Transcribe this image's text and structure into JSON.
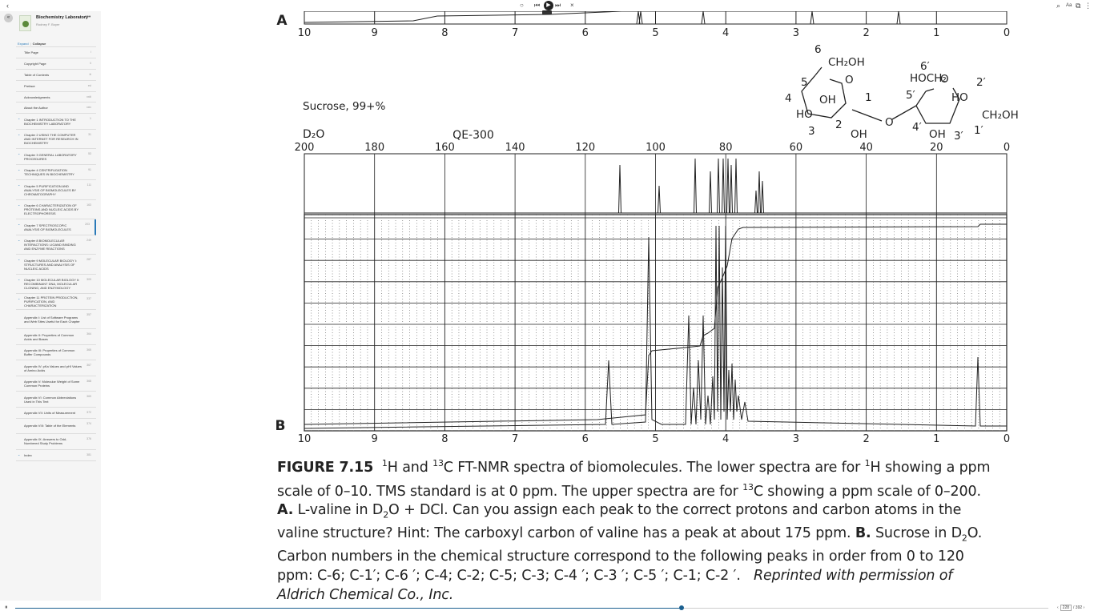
{
  "topbar": {
    "back_icon": "‹",
    "media": {
      "stop": "○",
      "prev": "⏮",
      "play": "▶",
      "next": "⏭",
      "close": "×"
    },
    "right_icons": [
      "⌕",
      "Aa",
      "⧉",
      "⋮"
    ]
  },
  "sidebar": {
    "book_title": "Biochemistry Laboratory",
    "book_author": "Rodney F. Boyer",
    "expand_label": "Expand",
    "collapse_label": "Collapse",
    "toc": [
      {
        "label": "Title Page",
        "page": "i",
        "chevron": false
      },
      {
        "label": "Copyright Page",
        "page": "ii",
        "chevron": false
      },
      {
        "label": "Table of Contents",
        "page": "iii",
        "chevron": false
      },
      {
        "label": "Preface",
        "page": "xvi",
        "chevron": false
      },
      {
        "label": "Acknowledgments",
        "page": "xxiii",
        "chevron": false
      },
      {
        "label": "About the Author",
        "page": "xxiv",
        "chevron": false
      },
      {
        "label": "Chapter 1 INTRODUCTION TO THE BIOCHEMISTRY LABORATORY",
        "page": "1",
        "chevron": true
      },
      {
        "label": "Chapter 2 USING THE COMPUTER AND INTERNET FOR RESEARCH IN BIOCHEMISTRY",
        "page": "31",
        "chevron": true
      },
      {
        "label": "Chapter 3 GENERAL LABORATORY PROCEDURES",
        "page": "53",
        "chevron": true
      },
      {
        "label": "Chapter 4 CENTRIFUGATION TECHNIQUES IN BIOCHEMISTRY",
        "page": "91",
        "chevron": true
      },
      {
        "label": "Chapter 5 PURIFICATION AND ANALYSIS OF BIOMOLECULES BY CHROMATOGRAPHY",
        "page": "111",
        "chevron": true
      },
      {
        "label": "Chapter 6 CHARACTERIZATION OF PROTEINS AND NUCLEIC ACIDS BY ELECTROPHORESIS",
        "page": "163",
        "chevron": true
      },
      {
        "label": "Chapter 7 SPECTROSCOPIC ANALYSIS OF BIOMOLECULES",
        "page": "203",
        "chevron": true,
        "active": true
      },
      {
        "label": "Chapter 8 BIOMOLECULAR INTERACTIONS: LIGAND BINDING AND ENZYME REACTIONS",
        "page": "249",
        "chevron": true
      },
      {
        "label": "Chapter 9 MOLECULAR BIOLOGY I: STRUCTURES AND ANALYSIS OF NUCLEIC ACIDS",
        "page": "287",
        "chevron": true
      },
      {
        "label": "Chapter 10 MOLECULAR BIOLOGY II: RECOMBINANT DNA, MOLECULAR CLONING, AND ENZYMOLOGY",
        "page": "309",
        "chevron": true
      },
      {
        "label": "Chapter 11 PROTEIN PRODUCTION, PURIFICATION, AND CHARACTERIZATION",
        "page": "337",
        "chevron": true
      },
      {
        "label": "Appendix I: List of Software Programs and Web Sites Useful for Each Chapter",
        "page": "357",
        "chevron": false
      },
      {
        "label": "Appendix II: Properties of Common Acids and Bases",
        "page": "364",
        "chevron": false
      },
      {
        "label": "Appendix III: Properties of Common Buffer Compounds",
        "page": "365",
        "chevron": false
      },
      {
        "label": "Appendix IV: pKa Values and pHI Values of Amino Acids",
        "page": "367",
        "chevron": false
      },
      {
        "label": "Appendix V: Molecular Weight of Some Common Proteins",
        "page": "368",
        "chevron": false
      },
      {
        "label": "Appendix VI: Common Abbreviations Used in This Text",
        "page": "369",
        "chevron": false
      },
      {
        "label": "Appendix VII: Units of Measurement",
        "page": "372",
        "chevron": false
      },
      {
        "label": "Appendix VIII: Table of the Elements",
        "page": "374",
        "chevron": false
      },
      {
        "label": "Appendix IX: Answers to Odd-Numbered Study Problems",
        "page": "376",
        "chevron": false
      },
      {
        "label": "Index",
        "page": "381",
        "chevron": true
      }
    ]
  },
  "figure": {
    "panel_a": "A",
    "panel_b": "B",
    "h_ticks": [
      "10",
      "9",
      "8",
      "7",
      "6",
      "5",
      "4",
      "3",
      "2",
      "1",
      "0"
    ],
    "c_ticks": [
      "200",
      "180",
      "160",
      "140",
      "120",
      "100",
      "80",
      "60",
      "40",
      "20",
      "0"
    ],
    "sample": "Sucrose, 99+%",
    "solvent": "D₂O",
    "instrument": "QE-300",
    "structure_labels": [
      "6",
      "CH₂OH",
      "5",
      "O",
      "4",
      "OH",
      "1",
      "HO",
      "3",
      "2",
      "OH",
      "O",
      "6′",
      "HOCH₂",
      "O",
      "5′",
      "2′",
      "HO",
      "4′",
      "CH₂OH",
      "OH",
      "3′",
      "1′"
    ]
  },
  "caption": {
    "label": "FIGURE 7.15",
    "p1": "H and ",
    "p2": "C FT-NMR spectra of biomolecules. The lower spectra are for ",
    "p3": "H showing a ppm scale of 0–10. TMS standard is at 0 ppm. The upper spectra are for ",
    "p4": "C showing a ppm scale of 0–200. ",
    "a_label": "A.",
    "p5": " L-valine in D",
    "p6": "O + DCl. Can you assign each peak to the correct protons and carbon atoms in the valine structure? Hint: The carboxyl carbon of valine has a peak at about 175 ppm. ",
    "b_label": "B.",
    "p7": " Sucrose in D",
    "p8": "O. Carbon numbers in the chemical structure correspond to the following peaks in order from 0 to 120 ppm: C-6; C-1′; C-6 ′; C-4; C-2; C-5; C-3; C-4 ′; C-3 ′; C-5 ′; C-1; C-2 ′.",
    "credit": "Reprinted with permission of Aldrich Chemical Co., Inc.",
    "sup1": "1",
    "sup13": "13",
    "sub2": "2"
  },
  "bottombar": {
    "pause_icon": "⏸",
    "progress": 0.645,
    "page_current": "228",
    "page_total": "392",
    "page_sep": "/"
  }
}
